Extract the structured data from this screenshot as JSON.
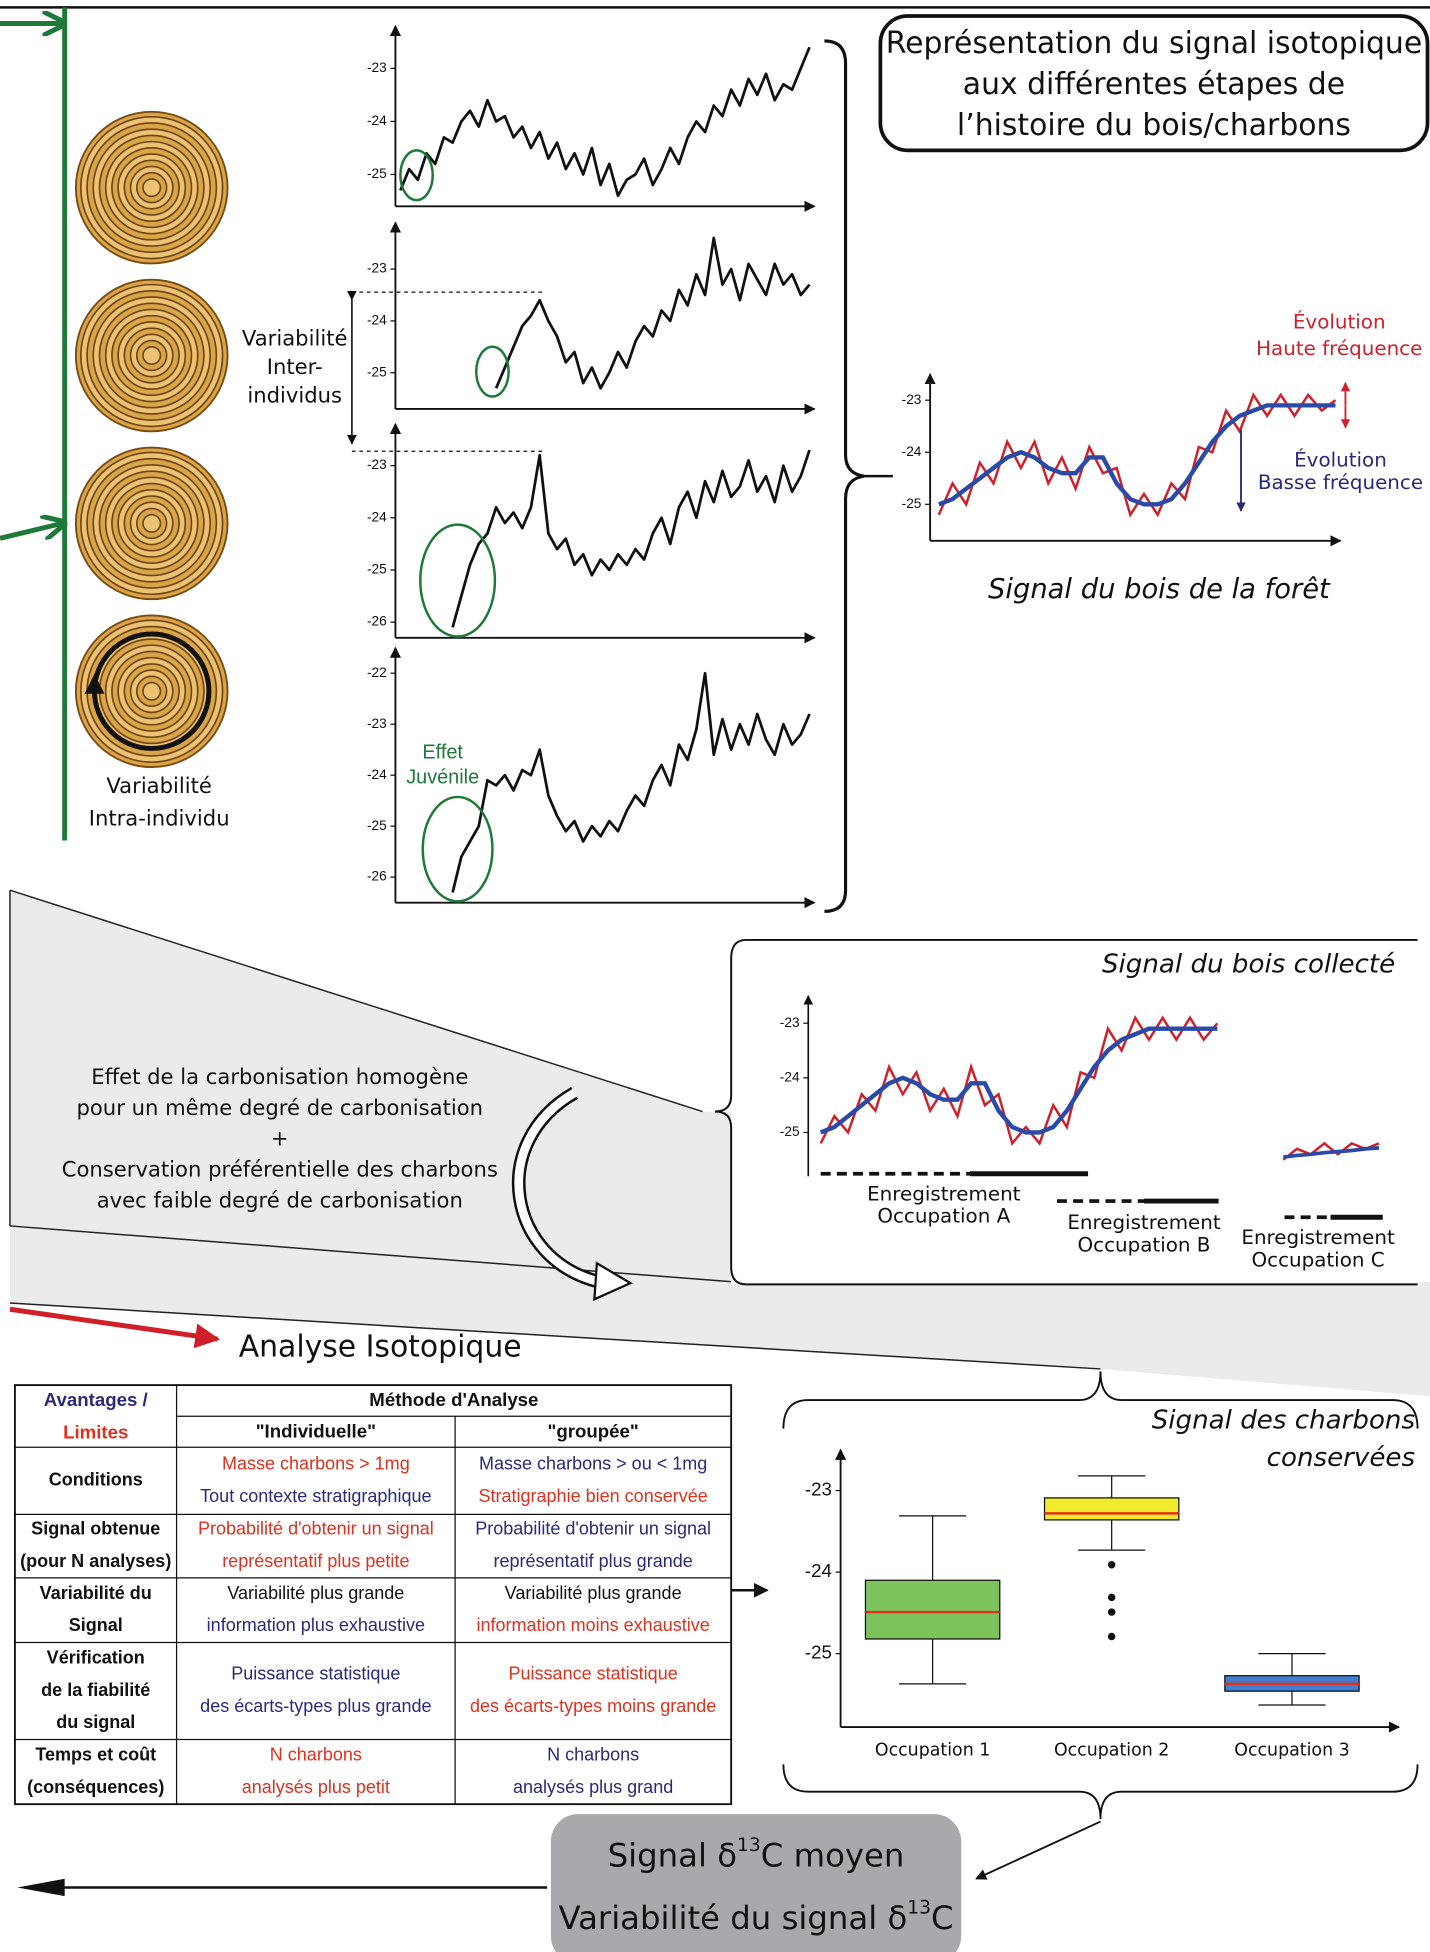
{
  "title_box": [
    "Représentation du signal isotopique",
    "aux différentes étapes de",
    "l’histoire du bois/charbons"
  ],
  "intra_label": [
    "Variabilité",
    "Intra-individu"
  ],
  "inter_label": [
    "Variabilité",
    "Inter-",
    "individus"
  ],
  "juvenile_label": [
    "Effet",
    "Juvénile"
  ],
  "panels": [
    {
      "ylim": [
        -25.6,
        -22.2
      ],
      "yticks": [
        -23,
        -24,
        -25
      ],
      "values": [
        -25.3,
        -24.9,
        -25.1,
        -24.6,
        -24.8,
        -24.3,
        -24.4,
        -24.0,
        -23.8,
        -24.1,
        -23.6,
        -24.0,
        -23.9,
        -24.3,
        -24.1,
        -24.5,
        -24.2,
        -24.7,
        -24.4,
        -24.9,
        -24.6,
        -25.0,
        -24.5,
        -25.2,
        -24.8,
        -25.4,
        -25.1,
        -25.0,
        -24.7,
        -25.2,
        -24.9,
        -24.5,
        -24.8,
        -24.3,
        -24.0,
        -24.2,
        -23.7,
        -23.9,
        -23.4,
        -23.7,
        -23.2,
        -23.5,
        -23.1,
        -23.6,
        -23.3,
        -23.4,
        -23.0,
        -22.6
      ]
    },
    {
      "ylim": [
        -25.7,
        -22.1
      ],
      "yticks": [
        -23,
        -24,
        -25
      ],
      "values": [
        null,
        null,
        null,
        null,
        null,
        null,
        null,
        null,
        null,
        null,
        null,
        -25.3,
        -24.9,
        -24.5,
        -24.1,
        -23.9,
        -23.6,
        -24.0,
        -24.3,
        -24.8,
        -24.6,
        -25.2,
        -24.9,
        -25.3,
        -25.0,
        -24.6,
        -24.9,
        -24.4,
        -24.1,
        -24.3,
        -23.8,
        -24.0,
        -23.4,
        -23.7,
        -23.1,
        -23.5,
        -22.4,
        -23.3,
        -23.0,
        -23.6,
        -22.9,
        -23.2,
        -23.5,
        -22.9,
        -23.3,
        -23.1,
        -23.5,
        -23.3
      ]
    },
    {
      "ylim": [
        -26.3,
        -22.2
      ],
      "yticks": [
        -23,
        -24,
        -25,
        -26
      ],
      "values": [
        null,
        null,
        null,
        null,
        null,
        null,
        -26.1,
        -25.5,
        -24.9,
        -24.5,
        -24.3,
        -23.8,
        -24.1,
        -23.9,
        -24.2,
        -23.8,
        -22.8,
        -24.3,
        -24.6,
        -24.4,
        -24.9,
        -24.7,
        -25.1,
        -24.8,
        -25.0,
        -24.7,
        -24.9,
        -24.6,
        -24.8,
        -24.3,
        -24.0,
        -24.5,
        -23.8,
        -23.5,
        -24.0,
        -23.3,
        -23.7,
        -23.1,
        -23.6,
        -23.4,
        -22.9,
        -23.5,
        -23.2,
        -23.7,
        -23.0,
        -23.5,
        -23.2,
        -22.7
      ]
    },
    {
      "ylim": [
        -26.5,
        -21.5
      ],
      "yticks": [
        -22,
        -23,
        -24,
        -25,
        -26
      ],
      "values": [
        null,
        null,
        null,
        null,
        null,
        null,
        -26.3,
        -25.6,
        -25.3,
        -25.0,
        -24.1,
        -24.2,
        -24.0,
        -24.3,
        -23.9,
        -24.0,
        -23.5,
        -24.4,
        -24.8,
        -25.1,
        -24.9,
        -25.3,
        -25.0,
        -25.2,
        -24.9,
        -25.1,
        -24.7,
        -24.4,
        -24.6,
        -24.1,
        -23.8,
        -24.2,
        -23.4,
        -23.7,
        -23.1,
        -22.0,
        -23.6,
        -22.9,
        -23.5,
        -23.0,
        -23.4,
        -22.8,
        -23.3,
        -23.6,
        -23.0,
        -23.4,
        -23.2,
        -22.8
      ]
    }
  ],
  "forest": {
    "ylim": [
      -25.7,
      -22.5
    ],
    "yticks": [
      -23,
      -24,
      -25
    ],
    "red": [
      -25.2,
      -24.6,
      -25.0,
      -24.2,
      -24.6,
      -23.8,
      -24.3,
      -23.8,
      -24.6,
      -24.1,
      -24.7,
      -23.9,
      -24.4,
      -24.3,
      -25.2,
      -24.8,
      -25.2,
      -24.6,
      -24.9,
      -23.9,
      -24.0,
      -23.2,
      -23.6,
      -22.9,
      -23.3,
      -22.9,
      -23.3,
      -22.9,
      -23.2,
      -23.0
    ],
    "blue": [
      -25.0,
      -24.9,
      -24.7,
      -24.5,
      -24.3,
      -24.1,
      -24.0,
      -24.1,
      -24.3,
      -24.4,
      -24.4,
      -24.1,
      -24.1,
      -24.6,
      -24.9,
      -25.0,
      -25.0,
      -24.9,
      -24.6,
      -24.2,
      -23.8,
      -23.5,
      -23.3,
      -23.2,
      -23.1,
      -23.1,
      -23.1,
      -23.1,
      -23.1,
      -23.1
    ],
    "high_label": [
      "Évolution",
      "Haute fréquence"
    ],
    "low_label": [
      "Évolution",
      "Basse fréquence"
    ],
    "caption": "Signal du bois de la forêt"
  },
  "process_text": [
    "Effet de la carbonisation homogène",
    "pour un même degré de carbonisation",
    "+",
    "Conservation préférentielle des charbons",
    "avec faible degré de carbonisation"
  ],
  "collected": {
    "title": "Signal du bois collecté",
    "ylim": [
      -25.8,
      -22.5
    ],
    "yticks": [
      -23,
      -24,
      -25
    ],
    "red": [
      -25.2,
      -24.7,
      -25.0,
      -24.3,
      -24.6,
      -23.8,
      -24.3,
      -23.9,
      -24.6,
      -24.2,
      -24.7,
      -23.8,
      -24.5,
      -24.3,
      -25.2,
      -24.9,
      -25.2,
      -24.5,
      -24.9,
      -23.9,
      -24.0,
      -23.1,
      -23.5,
      -22.9,
      -23.3,
      -22.9,
      -23.3,
      -22.9,
      -23.3,
      -23.0
    ],
    "blue": [
      -25.0,
      -24.9,
      -24.7,
      -24.5,
      -24.3,
      -24.1,
      -24.0,
      -24.1,
      -24.3,
      -24.4,
      -24.4,
      -24.1,
      -24.1,
      -24.6,
      -24.9,
      -25.0,
      -25.0,
      -24.9,
      -24.6,
      -24.2,
      -23.8,
      -23.5,
      -23.3,
      -23.2,
      -23.1,
      -23.1,
      -23.1,
      -23.1,
      -23.1,
      -23.1
    ],
    "c_red": [
      -25.5,
      -25.3,
      -25.4,
      -25.2,
      -25.4,
      -25.2,
      -25.3,
      -25.2
    ],
    "c_blue": [
      -25.45,
      -25.42,
      -25.4,
      -25.37,
      -25.35,
      -25.33,
      -25.3,
      -25.28
    ],
    "recordings": [
      [
        "Enregistrement",
        "Occupation A"
      ],
      [
        "Enregistrement",
        "Occupation B"
      ],
      [
        "Enregistrement",
        "Occupation C"
      ]
    ]
  },
  "analysis_label": "Analyse Isotopique",
  "table": {
    "corner": [
      "Avantages /",
      "Limites"
    ],
    "group": "Méthode d'Analyse",
    "columns": [
      "\"Individuelle\"",
      "\"groupée\""
    ],
    "rows": [
      [
        [
          "Conditions"
        ],
        [
          "Masse charbons > 1mg",
          "Tout contexte stratigraphique"
        ],
        [
          "Masse charbons > ou < 1mg",
          "Stratigraphie bien conservée"
        ]
      ],
      [
        [
          "Signal obtenue",
          "(pour N analyses)"
        ],
        [
          "Probabilité d'obtenir un signal",
          "représentatif plus petite"
        ],
        [
          "Probabilité d'obtenir un signal",
          "représentatif plus grande"
        ]
      ],
      [
        [
          "Variabilité du",
          "Signal"
        ],
        [
          "Variabilité plus grande",
          "information plus exhaustive"
        ],
        [
          "Variabilité plus grande",
          "information moins exhaustive"
        ]
      ],
      [
        [
          "Vérification",
          "de la fiabilité",
          "du signal"
        ],
        [
          "Puissance statistique",
          "des écarts-types plus grande"
        ],
        [
          "Puissance statistique",
          "des écarts-types moins grande"
        ]
      ],
      [
        [
          "Temps et coût",
          "(conséquences)"
        ],
        [
          "N charbons",
          "analysés plus petit"
        ],
        [
          "N charbons",
          "analysés plus grand"
        ]
      ]
    ]
  },
  "boxplot": {
    "title": [
      "Signal des charbons",
      "conservées"
    ],
    "ylim": [
      -25.9,
      -22.5
    ],
    "yticks": [
      -23,
      -24,
      -25
    ],
    "boxes": [
      {
        "category": "Occupation 1",
        "min": -25.37,
        "q1": -24.82,
        "median": -24.49,
        "q3": -24.1,
        "max": -23.31,
        "color": "#7dc35b",
        "outliers": []
      },
      {
        "category": "Occupation 2",
        "min": -23.73,
        "q1": -23.36,
        "median": -23.28,
        "q3": -23.09,
        "max": -22.82,
        "color": "#f2ea2c",
        "outliers": [
          -23.91,
          -24.31,
          -24.49,
          -24.79
        ]
      },
      {
        "category": "Occupation 3",
        "min": -25.63,
        "q1": -25.46,
        "median": -25.37,
        "q3": -25.27,
        "max": -25.0,
        "color": "#3f7fd0",
        "outliers": []
      }
    ]
  },
  "result_box": [
    [
      "Signal δ",
      "13",
      "C moyen"
    ],
    [
      "Variabilité du signal δ",
      "13",
      "C"
    ]
  ]
}
